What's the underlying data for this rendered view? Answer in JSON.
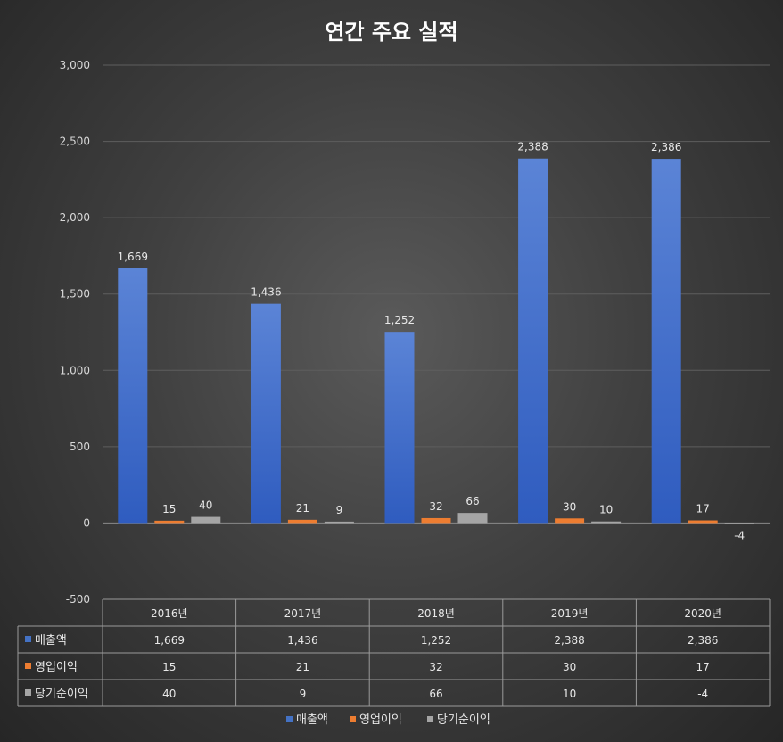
{
  "chart_data": {
    "type": "bar",
    "title": "연간 주요 실적",
    "categories": [
      "2016년",
      "2017년",
      "2018년",
      "2019년",
      "2020년"
    ],
    "series": [
      {
        "name": "매출액",
        "values": [
          1669,
          1436,
          1252,
          2388,
          2386
        ],
        "labels": [
          "1,669",
          "1,436",
          "1,252",
          "2,388",
          "2,386"
        ],
        "color": "#4472C4"
      },
      {
        "name": "영업이익",
        "values": [
          15,
          21,
          32,
          30,
          17
        ],
        "labels": [
          "15",
          "21",
          "32",
          "30",
          "17"
        ],
        "color": "#ED7D31"
      },
      {
        "name": "당기순이익",
        "values": [
          40,
          9,
          66,
          10,
          -4
        ],
        "labels": [
          "40",
          "9",
          "66",
          "10",
          "-4"
        ],
        "color": "#A5A5A5"
      }
    ],
    "ylim": [
      -500,
      3000
    ],
    "yticks": [
      3000,
      2500,
      2000,
      1500,
      1000,
      500,
      0,
      -500
    ],
    "ytick_labels": [
      "3,000",
      "2,500",
      "2,000",
      "1,500",
      "1,000",
      "500",
      "0",
      "-500"
    ],
    "grid": true,
    "legend": "bottom",
    "data_table": true
  }
}
